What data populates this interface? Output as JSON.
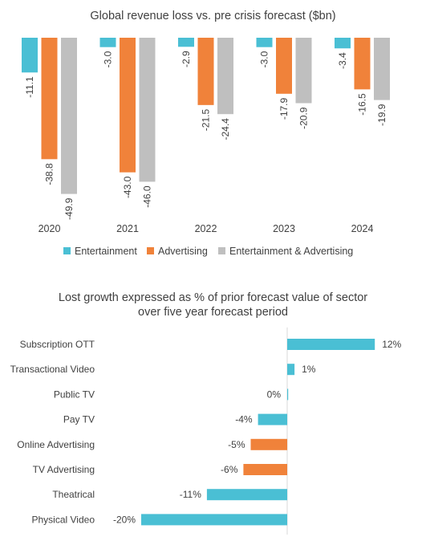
{
  "chart_data": [
    {
      "type": "bar",
      "title": "Global revenue loss vs. pre crisis forecast ($bn)",
      "categories": [
        "2020",
        "2021",
        "2022",
        "2023",
        "2024"
      ],
      "series": [
        {
          "name": "Entertainment",
          "color": "#4ABFD4",
          "values": [
            -11.1,
            -3.0,
            -2.9,
            -3.0,
            -3.4
          ],
          "labels": [
            "-11.1",
            "-3.0",
            "-2.9",
            "-3.0",
            "-3.4"
          ]
        },
        {
          "name": "Advertising",
          "color": "#F0823A",
          "values": [
            -38.8,
            -43.0,
            -21.5,
            -17.9,
            -16.5
          ],
          "labels": [
            "-38.8",
            "-43.0",
            "-21.5",
            "-17.9",
            "-16.5"
          ]
        },
        {
          "name": "Entertainment & Advertising",
          "color": "#BFBFBF",
          "values": [
            -49.9,
            -46.0,
            -24.4,
            -20.9,
            -19.9
          ],
          "labels": [
            "-49.9",
            "-46.0",
            "-24.4",
            "-20.9",
            "-19.9"
          ]
        }
      ],
      "legend": "bottom"
    },
    {
      "type": "bar",
      "orientation": "horizontal",
      "title": "Lost growth expressed as % of prior forecast value of sector over five year forecast period",
      "title_lines": [
        "Lost growth expressed as % of prior forecast value of sector",
        "over five year forecast period"
      ],
      "categories": [
        "Subscription OTT",
        "Transactional Video",
        "Public TV",
        "Pay TV",
        "Online Advertising",
        "TV Advertising",
        "Theatrical",
        "Physical Video"
      ],
      "values": [
        12,
        1,
        0,
        -4,
        -5,
        -6,
        -11,
        -20
      ],
      "labels": [
        "12%",
        "1%",
        "0%",
        "-4%",
        "-5%",
        "-6%",
        "-11%",
        "-20%"
      ],
      "colors": [
        "#4ABFD4",
        "#4ABFD4",
        "#4ABFD4",
        "#4ABFD4",
        "#F0823A",
        "#F0823A",
        "#4ABFD4",
        "#4ABFD4"
      ]
    }
  ]
}
